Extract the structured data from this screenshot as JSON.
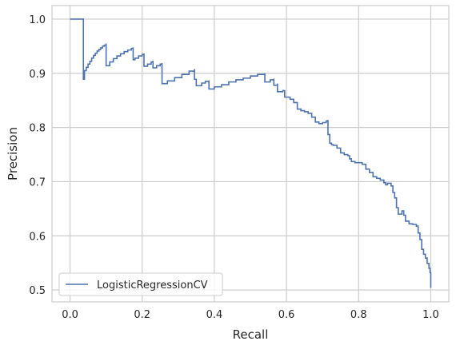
{
  "chart_data": {
    "type": "line",
    "title": "",
    "xlabel": "Recall",
    "ylabel": "Precision",
    "xlim": [
      -0.05,
      1.05
    ],
    "ylim": [
      0.478,
      1.025
    ],
    "xticks": [
      0.0,
      0.2,
      0.4,
      0.6,
      0.8,
      1.0
    ],
    "xtick_labels": [
      "0.0",
      "0.2",
      "0.4",
      "0.6",
      "0.8",
      "1.0"
    ],
    "yticks": [
      0.5,
      0.6,
      0.7,
      0.8,
      0.9,
      1.0
    ],
    "ytick_labels": [
      "0.5",
      "0.6",
      "0.7",
      "0.8",
      "0.9",
      "1.0"
    ],
    "grid": true,
    "legend_position": "lower-left",
    "drawstyle": "steps-post",
    "series": [
      {
        "name": "LogisticRegressionCV",
        "color": "#4c72b0",
        "points": [
          [
            0.0,
            1.0
          ],
          [
            0.037,
            1.0
          ],
          [
            0.037,
            0.889
          ],
          [
            0.04,
            0.905
          ],
          [
            0.045,
            0.911
          ],
          [
            0.05,
            0.917
          ],
          [
            0.055,
            0.922
          ],
          [
            0.06,
            0.928
          ],
          [
            0.065,
            0.933
          ],
          [
            0.07,
            0.937
          ],
          [
            0.075,
            0.941
          ],
          [
            0.08,
            0.944
          ],
          [
            0.085,
            0.947
          ],
          [
            0.09,
            0.95
          ],
          [
            0.095,
            0.952
          ],
          [
            0.1,
            0.955
          ],
          [
            0.1,
            0.914
          ],
          [
            0.11,
            0.921
          ],
          [
            0.12,
            0.927
          ],
          [
            0.13,
            0.932
          ],
          [
            0.14,
            0.936
          ],
          [
            0.15,
            0.94
          ],
          [
            0.16,
            0.943
          ],
          [
            0.17,
            0.946
          ],
          [
            0.175,
            0.948
          ],
          [
            0.175,
            0.925
          ],
          [
            0.18,
            0.928
          ],
          [
            0.19,
            0.932
          ],
          [
            0.2,
            0.935
          ],
          [
            0.205,
            0.937
          ],
          [
            0.205,
            0.913
          ],
          [
            0.215,
            0.917
          ],
          [
            0.225,
            0.921
          ],
          [
            0.23,
            0.923
          ],
          [
            0.23,
            0.91
          ],
          [
            0.24,
            0.914
          ],
          [
            0.25,
            0.917
          ],
          [
            0.255,
            0.919
          ],
          [
            0.255,
            0.881
          ],
          [
            0.27,
            0.886
          ],
          [
            0.29,
            0.892
          ],
          [
            0.31,
            0.898
          ],
          [
            0.33,
            0.904
          ],
          [
            0.345,
            0.908
          ],
          [
            0.345,
            0.889
          ],
          [
            0.35,
            0.89
          ],
          [
            0.35,
            0.877
          ],
          [
            0.365,
            0.882
          ],
          [
            0.375,
            0.885
          ],
          [
            0.385,
            0.887
          ],
          [
            0.385,
            0.871
          ],
          [
            0.4,
            0.875
          ],
          [
            0.42,
            0.879
          ],
          [
            0.44,
            0.884
          ],
          [
            0.46,
            0.888
          ],
          [
            0.48,
            0.891
          ],
          [
            0.5,
            0.895
          ],
          [
            0.52,
            0.898
          ],
          [
            0.54,
            0.9
          ],
          [
            0.54,
            0.884
          ],
          [
            0.555,
            0.888
          ],
          [
            0.565,
            0.89
          ],
          [
            0.565,
            0.878
          ],
          [
            0.575,
            0.881
          ],
          [
            0.575,
            0.866
          ],
          [
            0.59,
            0.868
          ],
          [
            0.595,
            0.869
          ],
          [
            0.595,
            0.856
          ],
          [
            0.61,
            0.852
          ],
          [
            0.62,
            0.846
          ],
          [
            0.63,
            0.834
          ],
          [
            0.64,
            0.831
          ],
          [
            0.65,
            0.829
          ],
          [
            0.66,
            0.826
          ],
          [
            0.67,
            0.819
          ],
          [
            0.68,
            0.81
          ],
          [
            0.69,
            0.807
          ],
          [
            0.7,
            0.809
          ],
          [
            0.71,
            0.812
          ],
          [
            0.715,
            0.814
          ],
          [
            0.715,
            0.787
          ],
          [
            0.72,
            0.771
          ],
          [
            0.725,
            0.768
          ],
          [
            0.73,
            0.767
          ],
          [
            0.74,
            0.762
          ],
          [
            0.75,
            0.753
          ],
          [
            0.76,
            0.75
          ],
          [
            0.77,
            0.748
          ],
          [
            0.775,
            0.742
          ],
          [
            0.78,
            0.737
          ],
          [
            0.79,
            0.735
          ],
          [
            0.8,
            0.735
          ],
          [
            0.81,
            0.732
          ],
          [
            0.82,
            0.723
          ],
          [
            0.83,
            0.717
          ],
          [
            0.84,
            0.709
          ],
          [
            0.85,
            0.706
          ],
          [
            0.86,
            0.703
          ],
          [
            0.87,
            0.698
          ],
          [
            0.875,
            0.694
          ],
          [
            0.88,
            0.697
          ],
          [
            0.89,
            0.692
          ],
          [
            0.895,
            0.68
          ],
          [
            0.9,
            0.67
          ],
          [
            0.905,
            0.652
          ],
          [
            0.91,
            0.64
          ],
          [
            0.92,
            0.646
          ],
          [
            0.925,
            0.638
          ],
          [
            0.93,
            0.627
          ],
          [
            0.94,
            0.622
          ],
          [
            0.95,
            0.621
          ],
          [
            0.96,
            0.618
          ],
          [
            0.965,
            0.605
          ],
          [
            0.97,
            0.593
          ],
          [
            0.975,
            0.575
          ],
          [
            0.98,
            0.566
          ],
          [
            0.985,
            0.559
          ],
          [
            0.99,
            0.549
          ],
          [
            0.995,
            0.54
          ],
          [
            0.998,
            0.532
          ],
          [
            1.0,
            0.504
          ]
        ]
      }
    ]
  }
}
